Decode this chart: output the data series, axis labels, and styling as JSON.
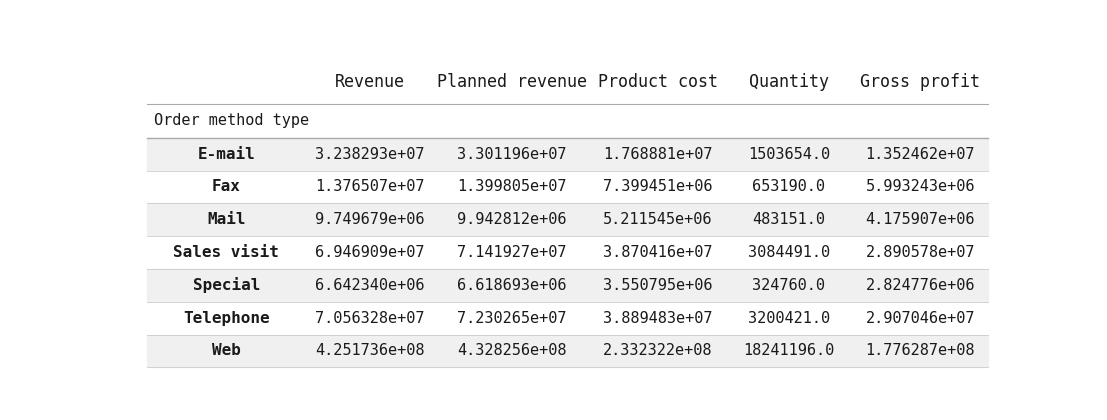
{
  "col_headers": [
    "Revenue",
    "Planned revenue",
    "Product cost",
    "Quantity",
    "Gross profit"
  ],
  "row_header_label": "Order method type",
  "rows": [
    {
      "label": "E-mail",
      "values": [
        "3.238293e+07",
        "3.301196e+07",
        "1.768881e+07",
        "1503654.0",
        "1.352462e+07"
      ]
    },
    {
      "label": "Fax",
      "values": [
        "1.376507e+07",
        "1.399805e+07",
        "7.399451e+06",
        "653190.0",
        "5.993243e+06"
      ]
    },
    {
      "label": "Mail",
      "values": [
        "9.749679e+06",
        "9.942812e+06",
        "5.211545e+06",
        "483151.0",
        "4.175907e+06"
      ]
    },
    {
      "label": "Sales visit",
      "values": [
        "6.946909e+07",
        "7.141927e+07",
        "3.870416e+07",
        "3084491.0",
        "2.890578e+07"
      ]
    },
    {
      "label": "Special",
      "values": [
        "6.642340e+06",
        "6.618693e+06",
        "3.550795e+06",
        "324760.0",
        "2.824776e+06"
      ]
    },
    {
      "label": "Telephone",
      "values": [
        "7.056328e+07",
        "7.230265e+07",
        "3.889483e+07",
        "3200421.0",
        "2.907046e+07"
      ]
    },
    {
      "label": "Web",
      "values": [
        "4.251736e+08",
        "4.328256e+08",
        "2.332322e+08",
        "18241196.0",
        "1.776287e+08"
      ]
    }
  ],
  "row_colors": [
    "#f0f0f0",
    "#ffffff",
    "#f0f0f0",
    "#ffffff",
    "#f0f0f0",
    "#ffffff",
    "#f0f0f0"
  ],
  "figsize": [
    11.07,
    4.2
  ],
  "dpi": 100
}
